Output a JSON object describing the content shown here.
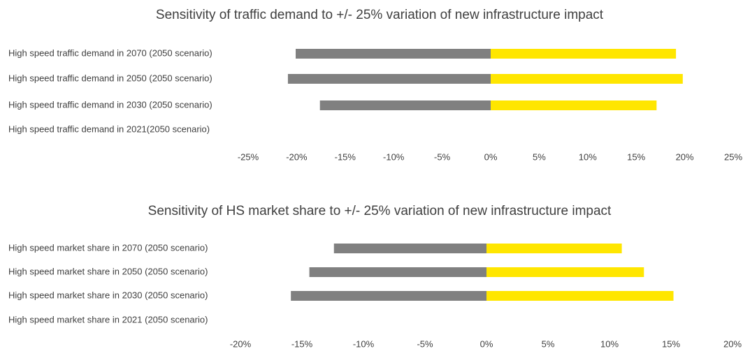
{
  "chart_data": [
    {
      "type": "tornado",
      "title": "Sensitivity of traffic demand  to +/- 25% variation of new infrastructure impact",
      "categories": [
        "High speed traffic demand in 2070 (2050 scenario)",
        "High speed traffic demand in 2050 (2050 scenario)",
        "High speed traffic demand in 2030 (2050 scenario)",
        "High speed traffic demand in 2021(2050 scenario)"
      ],
      "series": [
        {
          "color": "#808080",
          "values": [
            -20.1,
            -20.9,
            -17.6,
            0
          ]
        },
        {
          "color": "#ffe600",
          "values": [
            19.1,
            19.8,
            17.1,
            0
          ]
        }
      ],
      "xlim": [
        -25,
        25
      ],
      "xticks": [
        {
          "value": -25,
          "label": "-25%"
        },
        {
          "value": -20,
          "label": "-20%"
        },
        {
          "value": -15,
          "label": "-15%"
        },
        {
          "value": -10,
          "label": "-10%"
        },
        {
          "value": -5,
          "label": "-5%"
        },
        {
          "value": 0,
          "label": "0%"
        },
        {
          "value": 5,
          "label": "5%"
        },
        {
          "value": 10,
          "label": "10%"
        },
        {
          "value": 15,
          "label": "15%"
        },
        {
          "value": 20,
          "label": "20%"
        },
        {
          "value": 25,
          "label": "25%"
        }
      ]
    },
    {
      "type": "tornado",
      "title": "Sensitivity of HS market share to +/- 25% variation of new infrastructure impact",
      "categories": [
        "High speed market share in 2070 (2050 scenario)",
        "High speed market share in 2050 (2050 scenario)",
        "High speed market share in 2030 (2050 scenario)",
        "High speed market share in 2021 (2050 scenario)"
      ],
      "series": [
        {
          "color": "#808080",
          "values": [
            -12.4,
            -14.4,
            -15.9,
            0
          ]
        },
        {
          "color": "#ffe600",
          "values": [
            11.0,
            12.8,
            15.2,
            0
          ]
        }
      ],
      "xlim": [
        -20,
        20
      ],
      "xticks": [
        {
          "value": -20,
          "label": "-20%"
        },
        {
          "value": -15,
          "label": "-15%"
        },
        {
          "value": -10,
          "label": "-10%"
        },
        {
          "value": -5,
          "label": "-5%"
        },
        {
          "value": 0,
          "label": "0%"
        },
        {
          "value": 5,
          "label": "5%"
        },
        {
          "value": 10,
          "label": "10%"
        },
        {
          "value": 15,
          "label": "15%"
        },
        {
          "value": 20,
          "label": "20%"
        }
      ]
    }
  ]
}
